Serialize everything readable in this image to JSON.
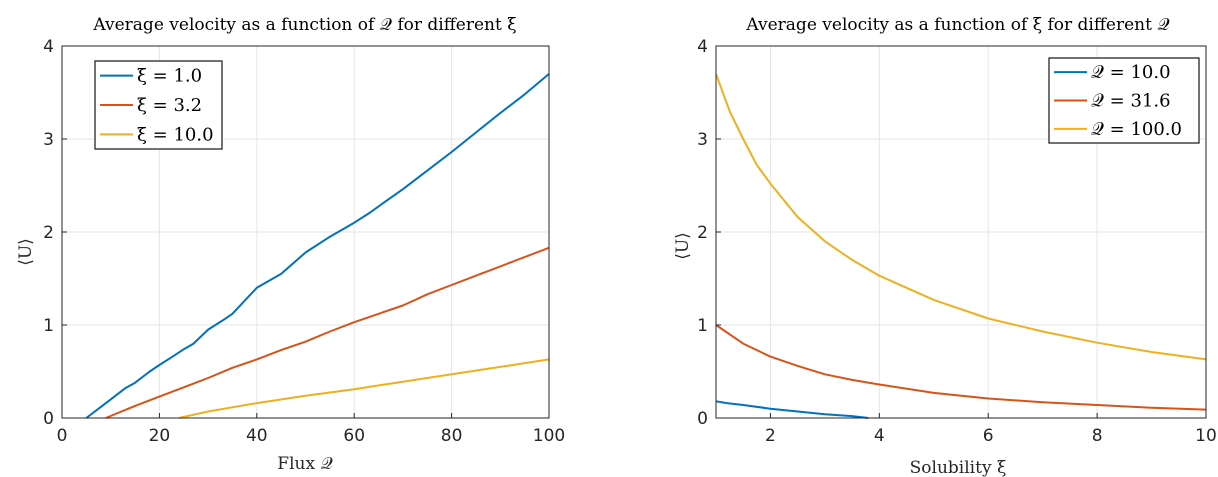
{
  "chart_data": [
    {
      "type": "line",
      "title": "Average velocity as a function of 𝒬 for different ξ",
      "xlabel": "Flux 𝒬",
      "ylabel": "⟨U⟩",
      "xlim": [
        0,
        100
      ],
      "ylim": [
        0,
        4
      ],
      "xticks": [
        0,
        20,
        40,
        60,
        80,
        100
      ],
      "yticks": [
        0,
        1,
        2,
        3,
        4
      ],
      "grid": true,
      "legend_position": "top-left",
      "series": [
        {
          "name": "ξ = 1.0",
          "color": "#0072BD",
          "x": [
            5,
            8,
            10,
            13,
            15,
            18,
            20,
            23,
            25,
            27,
            30,
            33,
            35,
            40,
            45,
            50,
            55,
            60,
            63,
            67,
            70,
            75,
            80,
            85,
            90,
            95,
            100
          ],
          "y": [
            0,
            0.12,
            0.2,
            0.32,
            0.38,
            0.5,
            0.57,
            0.67,
            0.74,
            0.8,
            0.95,
            1.05,
            1.12,
            1.4,
            1.55,
            1.78,
            1.95,
            2.1,
            2.2,
            2.35,
            2.46,
            2.66,
            2.86,
            3.07,
            3.28,
            3.48,
            3.7
          ]
        },
        {
          "name": "ξ = 3.2",
          "color": "#D95319",
          "x": [
            9,
            15,
            20,
            25,
            30,
            35,
            40,
            45,
            50,
            55,
            60,
            65,
            70,
            75,
            80,
            85,
            90,
            95,
            100
          ],
          "y": [
            0,
            0.13,
            0.23,
            0.33,
            0.43,
            0.54,
            0.63,
            0.73,
            0.82,
            0.93,
            1.03,
            1.12,
            1.21,
            1.33,
            1.43,
            1.53,
            1.63,
            1.73,
            1.83
          ]
        },
        {
          "name": "ξ = 10.0",
          "color": "#EDB120",
          "x": [
            24,
            30,
            40,
            50,
            60,
            70,
            80,
            90,
            100
          ],
          "y": [
            0,
            0.07,
            0.16,
            0.24,
            0.31,
            0.39,
            0.47,
            0.55,
            0.63
          ]
        }
      ]
    },
    {
      "type": "line",
      "title": "Average velocity as a function of ξ for different 𝒬",
      "xlabel": "Solubility ξ",
      "ylabel": "⟨U⟩",
      "xlim": [
        1,
        10
      ],
      "ylim": [
        0,
        4
      ],
      "xticks": [
        2,
        4,
        6,
        8,
        10
      ],
      "yticks": [
        0,
        1,
        2,
        3,
        4
      ],
      "grid": true,
      "legend_position": "top-right",
      "series": [
        {
          "name": "𝒬 = 10.0",
          "color": "#0072BD",
          "x": [
            1,
            1.2,
            1.5,
            2,
            2.5,
            3,
            3.5,
            3.8
          ],
          "y": [
            0.18,
            0.16,
            0.14,
            0.1,
            0.07,
            0.04,
            0.02,
            0
          ]
        },
        {
          "name": "𝒬 = 31.6",
          "color": "#D95319",
          "x": [
            1,
            1.5,
            2,
            2.5,
            3,
            3.5,
            4,
            5,
            6,
            7,
            8,
            9,
            10
          ],
          "y": [
            1.0,
            0.8,
            0.66,
            0.56,
            0.47,
            0.41,
            0.36,
            0.27,
            0.21,
            0.17,
            0.14,
            0.11,
            0.09
          ]
        },
        {
          "name": "𝒬 = 100.0",
          "color": "#EDB120",
          "x": [
            1,
            1.25,
            1.5,
            1.75,
            2,
            2.5,
            3,
            3.5,
            4,
            5,
            6,
            7,
            8,
            9,
            10
          ],
          "y": [
            3.7,
            3.3,
            3.0,
            2.72,
            2.52,
            2.16,
            1.9,
            1.7,
            1.53,
            1.27,
            1.07,
            0.93,
            0.81,
            0.71,
            0.63
          ]
        }
      ]
    }
  ]
}
